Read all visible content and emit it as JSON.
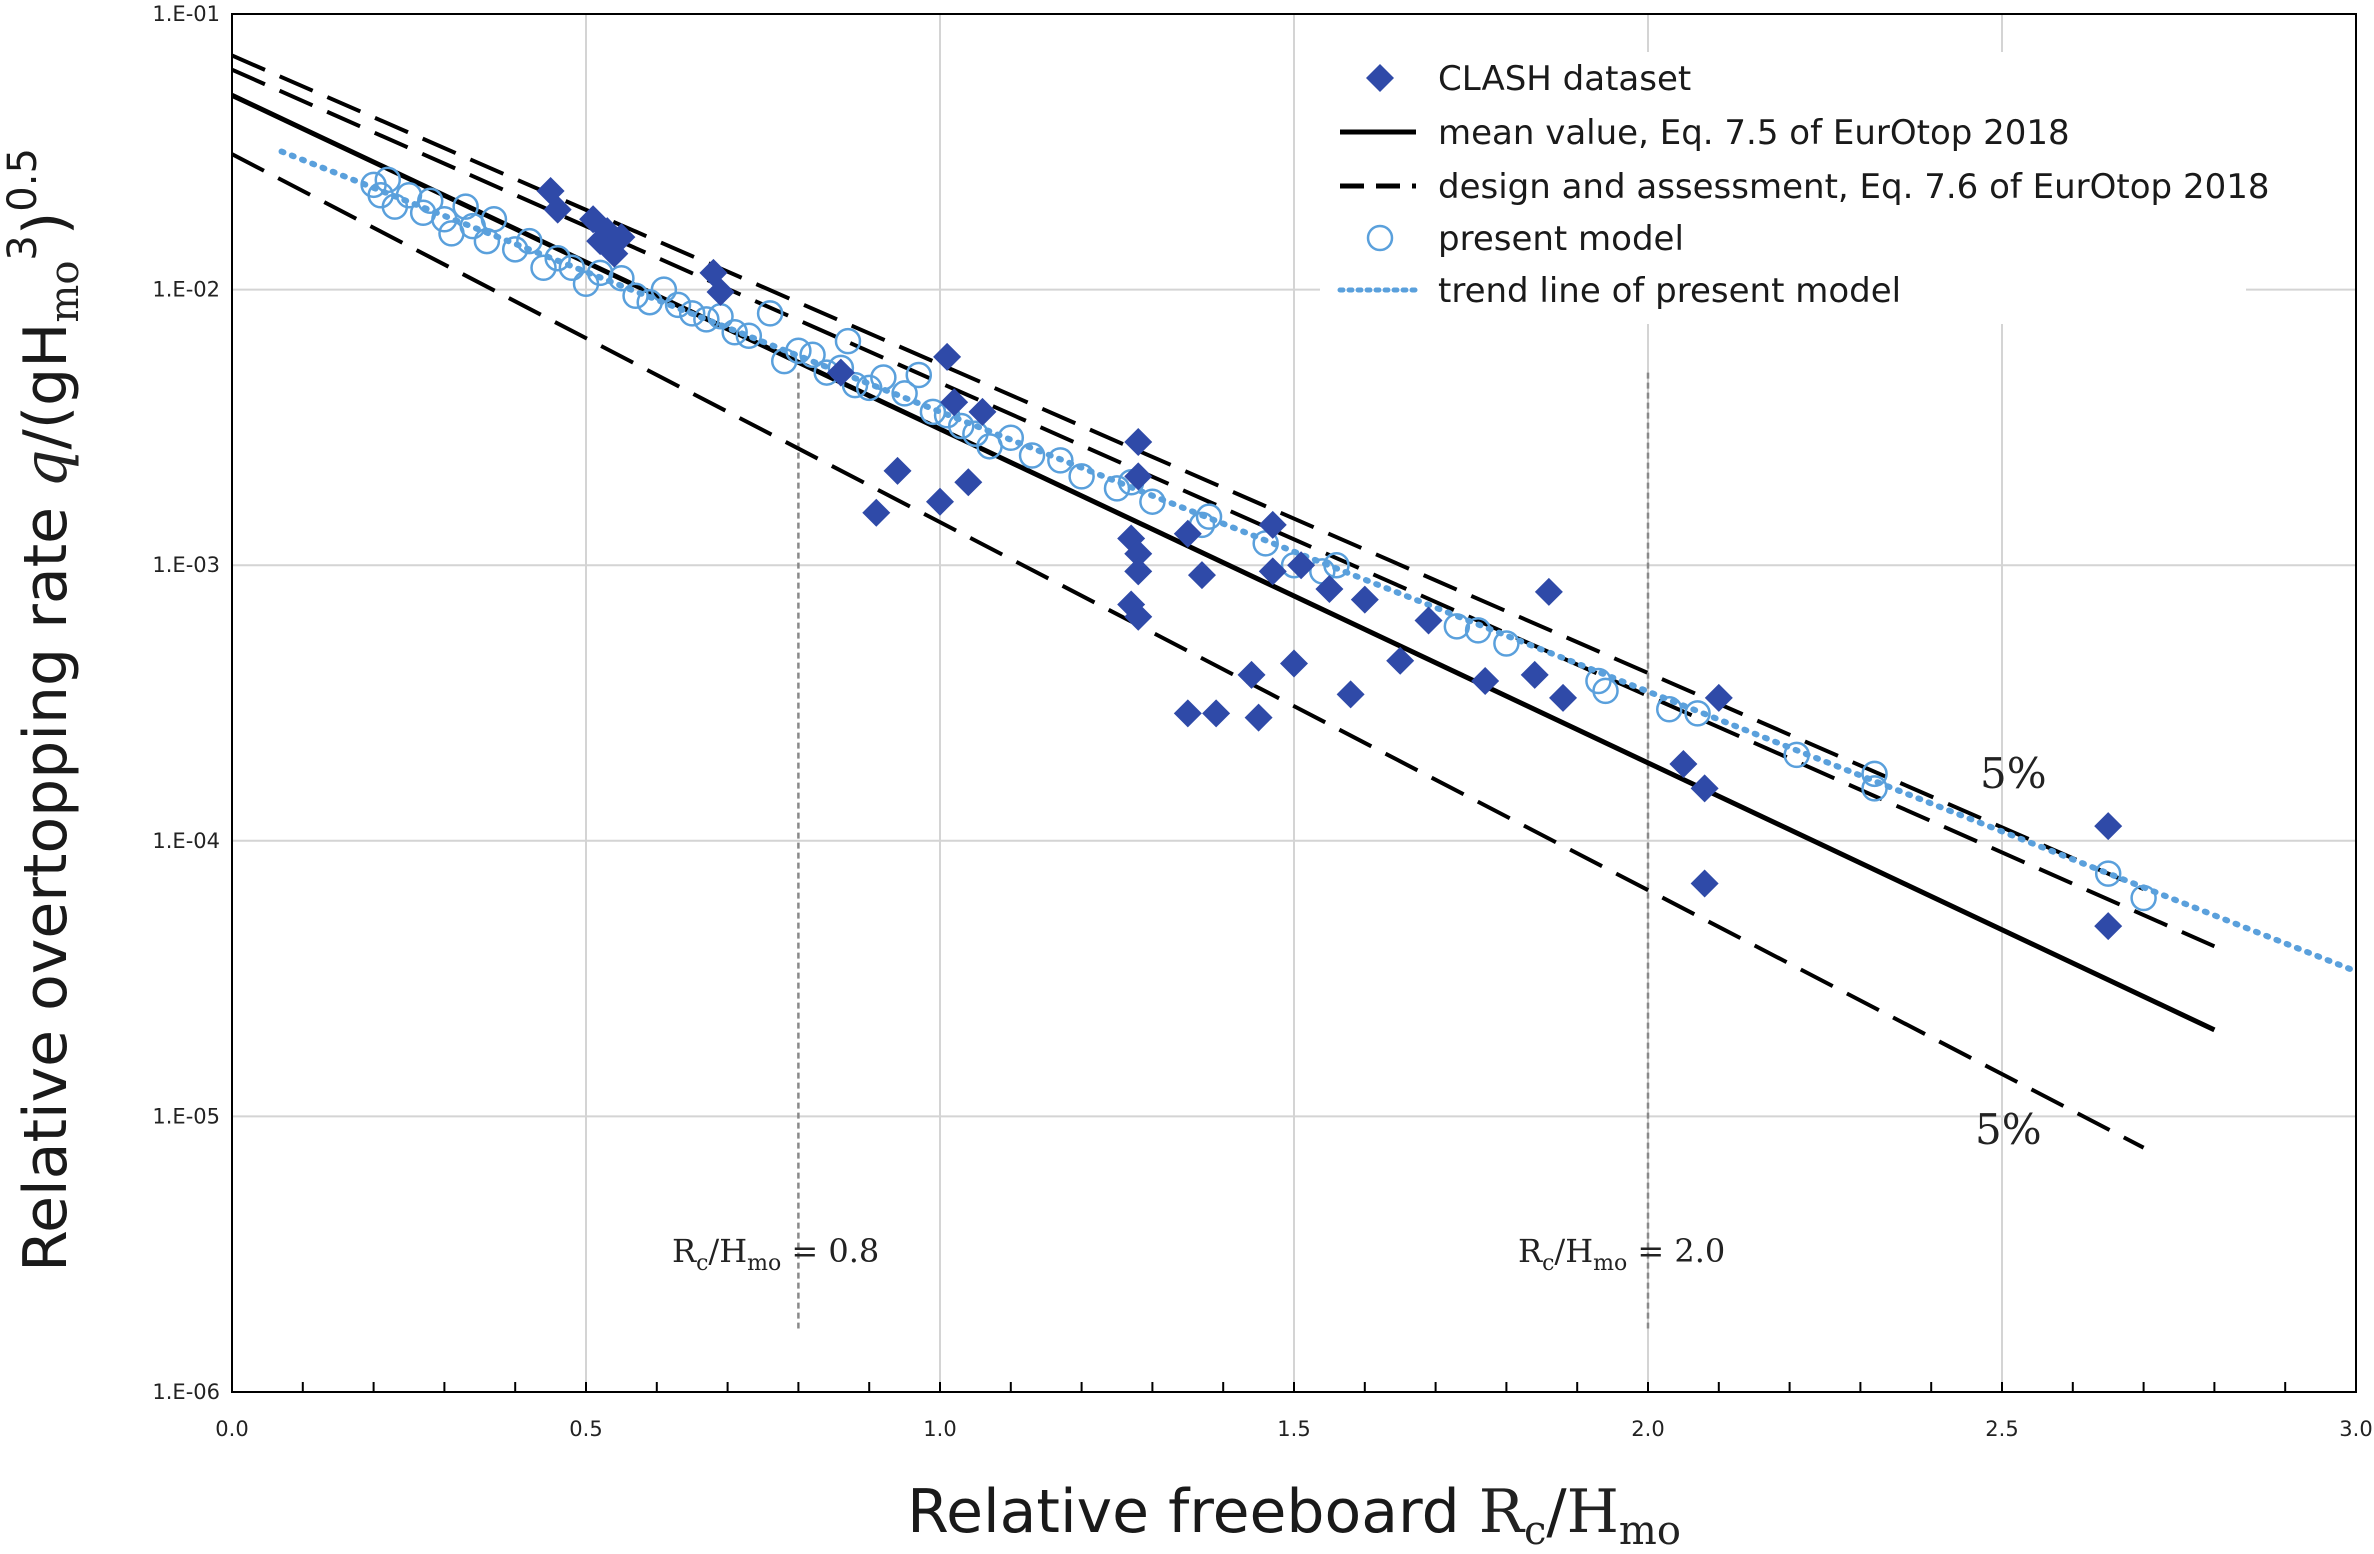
{
  "chart_data": {
    "type": "scatter",
    "xlabel": {
      "main": "Relative freeboard ",
      "rc": "R",
      "rc_sub": "c",
      "slash": "/",
      "h": "H",
      "h_sub": "mo"
    },
    "ylabel": {
      "main": "Relative overtopping rate ",
      "q": "q",
      "rest": "/(gH",
      "sub": "mo",
      "sup3": "3",
      "close": ")",
      "sup05": "0.5"
    },
    "x_ticks": [
      "0.0",
      "0.5",
      "1.0",
      "1.5",
      "2.0",
      "2.5",
      "3.0"
    ],
    "y_ticks": [
      "1.E-06",
      "1.E-05",
      "1.E-04",
      "1.E-03",
      "1.E-02",
      "1.E-01"
    ],
    "xlim": [
      0,
      3
    ],
    "ylim": [
      1e-06,
      0.1
    ],
    "y_scale": "log",
    "grid": true,
    "legend_position": "top-right",
    "colors": {
      "clash": "#2f4aa8",
      "model": "#5aa0dc",
      "line": "#000000",
      "grid": "#d4d4d4",
      "guide": "#8a8a8a"
    },
    "legend": [
      {
        "label": "CLASH dataset"
      },
      {
        "label": "mean value, Eq. 7.5 of EurOtop 2018"
      },
      {
        "label": "design and assessment, Eq. 7.6 of EurOtop 2018"
      },
      {
        "label": "present model"
      },
      {
        "label": "trend line of present model"
      }
    ],
    "lines": [
      {
        "name": "mean value, Eq. 7.5 of EurOtop 2018",
        "style": "solid",
        "x": [
          0,
          2.8
        ],
        "y": [
          0.0507,
          2.06e-05
        ]
      },
      {
        "name": "design and assessment, Eq. 7.6 of EurOtop 2018",
        "style": "dashed",
        "x": [
          0,
          2.8
        ],
        "y": [
          0.0628,
          4.14e-05
        ]
      },
      {
        "name": "upper 5%",
        "style": "dashed",
        "x": [
          0,
          2.7
        ],
        "y": [
          0.0707,
          6.68e-05
        ]
      },
      {
        "name": "lower 5%",
        "style": "dashed",
        "x": [
          0,
          2.7
        ],
        "y": [
          0.031,
          7.7e-06
        ]
      },
      {
        "name": "trend line of present model",
        "style": "dotted",
        "x": [
          0.07,
          3.0
        ],
        "y": [
          0.0317,
          3.36e-05
        ]
      }
    ],
    "clash_dataset": [
      [
        0.45,
        0.0228
      ],
      [
        0.46,
        0.0195
      ],
      [
        0.51,
        0.018
      ],
      [
        0.52,
        0.015
      ],
      [
        0.53,
        0.0163
      ],
      [
        0.54,
        0.0135
      ],
      [
        0.55,
        0.0155
      ],
      [
        0.68,
        0.0115
      ],
      [
        0.69,
        0.0098
      ],
      [
        0.86,
        0.005
      ],
      [
        1.01,
        0.0057
      ],
      [
        1.02,
        0.0039
      ],
      [
        1.06,
        0.0036
      ],
      [
        1.0,
        0.0017
      ],
      [
        1.04,
        0.002
      ],
      [
        0.91,
        0.00155
      ],
      [
        0.94,
        0.0022
      ],
      [
        1.28,
        0.0028
      ],
      [
        1.28,
        0.0021
      ],
      [
        1.27,
        0.00125
      ],
      [
        1.28,
        0.0011
      ],
      [
        1.28,
        0.00095
      ],
      [
        1.27,
        0.00072
      ],
      [
        1.28,
        0.00065
      ],
      [
        1.35,
        0.0013
      ],
      [
        1.37,
        0.00092
      ],
      [
        1.35,
        0.00029
      ],
      [
        1.39,
        0.00029
      ],
      [
        1.44,
        0.0004
      ],
      [
        1.45,
        0.00028
      ],
      [
        1.47,
        0.0014
      ],
      [
        1.47,
        0.00095
      ],
      [
        1.5,
        0.00044
      ],
      [
        1.51,
        0.001
      ],
      [
        1.55,
        0.00082
      ],
      [
        1.58,
        0.00034
      ],
      [
        1.6,
        0.00075
      ],
      [
        1.65,
        0.00045
      ],
      [
        1.69,
        0.00063
      ],
      [
        1.77,
        0.00038
      ],
      [
        1.84,
        0.0004
      ],
      [
        1.86,
        0.0008
      ],
      [
        1.88,
        0.00033
      ],
      [
        2.05,
        0.00019
      ],
      [
        2.08,
        0.000155
      ],
      [
        2.08,
        7e-05
      ],
      [
        2.1,
        0.00033
      ],
      [
        2.65,
        0.000113
      ],
      [
        2.65,
        4.9e-05
      ]
    ],
    "present_model": [
      [
        0.2,
        0.024
      ],
      [
        0.21,
        0.022
      ],
      [
        0.22,
        0.025
      ],
      [
        0.23,
        0.02
      ],
      [
        0.25,
        0.022
      ],
      [
        0.27,
        0.019
      ],
      [
        0.28,
        0.021
      ],
      [
        0.3,
        0.018
      ],
      [
        0.31,
        0.016
      ],
      [
        0.33,
        0.02
      ],
      [
        0.34,
        0.017
      ],
      [
        0.36,
        0.015
      ],
      [
        0.37,
        0.018
      ],
      [
        0.4,
        0.014
      ],
      [
        0.42,
        0.015
      ],
      [
        0.44,
        0.012
      ],
      [
        0.46,
        0.013
      ],
      [
        0.48,
        0.012
      ],
      [
        0.5,
        0.0105
      ],
      [
        0.52,
        0.0115
      ],
      [
        0.55,
        0.011
      ],
      [
        0.57,
        0.0095
      ],
      [
        0.59,
        0.009
      ],
      [
        0.61,
        0.01
      ],
      [
        0.63,
        0.0088
      ],
      [
        0.65,
        0.0082
      ],
      [
        0.67,
        0.0078
      ],
      [
        0.69,
        0.008
      ],
      [
        0.71,
        0.007
      ],
      [
        0.73,
        0.0068
      ],
      [
        0.76,
        0.0082
      ],
      [
        0.78,
        0.0055
      ],
      [
        0.8,
        0.006
      ],
      [
        0.82,
        0.0058
      ],
      [
        0.84,
        0.005
      ],
      [
        0.86,
        0.0052
      ],
      [
        0.87,
        0.0065
      ],
      [
        0.88,
        0.0045
      ],
      [
        0.9,
        0.0044
      ],
      [
        0.92,
        0.0048
      ],
      [
        0.95,
        0.0042
      ],
      [
        0.97,
        0.0049
      ],
      [
        0.99,
        0.0036
      ],
      [
        1.01,
        0.0035
      ],
      [
        1.03,
        0.0032
      ],
      [
        1.05,
        0.003
      ],
      [
        1.07,
        0.0027
      ],
      [
        1.1,
        0.0029
      ],
      [
        1.13,
        0.0025
      ],
      [
        1.17,
        0.0024
      ],
      [
        1.2,
        0.0021
      ],
      [
        1.25,
        0.0019
      ],
      [
        1.27,
        0.002
      ],
      [
        1.3,
        0.0017
      ],
      [
        1.37,
        0.0014
      ],
      [
        1.38,
        0.0015
      ],
      [
        1.46,
        0.0012
      ],
      [
        1.5,
        0.001
      ],
      [
        1.54,
        0.00095
      ],
      [
        1.56,
        0.001
      ],
      [
        1.73,
        0.0006
      ],
      [
        1.76,
        0.00058
      ],
      [
        1.8,
        0.00052
      ],
      [
        1.93,
        0.00038
      ],
      [
        1.94,
        0.00035
      ],
      [
        2.03,
        0.0003
      ],
      [
        2.07,
        0.00029
      ],
      [
        2.21,
        0.000205
      ],
      [
        2.32,
        0.000175
      ],
      [
        2.32,
        0.000155
      ],
      [
        2.65,
        7.6e-05
      ],
      [
        2.7,
        6.2e-05
      ]
    ],
    "annotations": {
      "upper_pct": "5%",
      "lower_pct": "5%",
      "guide1": {
        "x": 0.8,
        "lhs": "R",
        "lhs_sub": "c",
        "mid": "/H",
        "mid_sub": "mo",
        "rhs": " = 0.8"
      },
      "guide2": {
        "x": 2.0,
        "lhs": "R",
        "lhs_sub": "c",
        "mid": "/H",
        "mid_sub": "mo",
        "rhs": " = 2.0"
      }
    }
  }
}
